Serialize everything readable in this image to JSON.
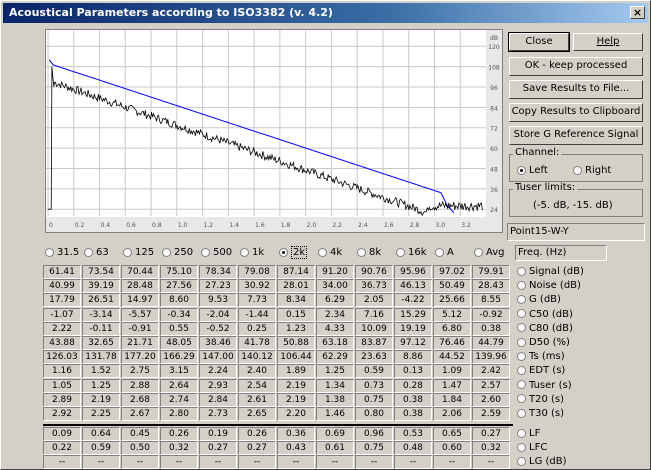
{
  "window": {
    "title": "Acoustical Parameters according to ISO3382 (v. 4.2)",
    "close_glyph": "×"
  },
  "plot": {
    "y_ticks": [
      "120",
      "108",
      "96",
      "84",
      "72",
      "60",
      "48",
      "36",
      "24"
    ],
    "x_ticks": [
      "0",
      "0.2",
      "0.4",
      "0.6",
      "0.8",
      "1.0",
      "1.2",
      "1.4",
      "1.6",
      "1.8",
      "2.0",
      "2.2",
      "2.4",
      "2.6",
      "2.8",
      "3.0",
      "3.2"
    ],
    "extra_top_label": "dB"
  },
  "buttons": {
    "close": "Close",
    "help": "Help",
    "ok": "OK - keep processed",
    "save": "Save Results to File...",
    "copy": "Copy Results to Clipboard",
    "store": "Store G Reference Signal"
  },
  "channel": {
    "label": "Channel:",
    "left": "Left",
    "right": "Right",
    "selected": "Left"
  },
  "tuser": {
    "label": "Tuser limits:",
    "value": "(-5. dB, -15. dB)"
  },
  "point_name": "Point15-W-Y",
  "bands": [
    "31.5",
    "63",
    "125",
    "250",
    "500",
    "1k",
    "2k",
    "4k",
    "8k",
    "16k",
    "A",
    "Avg"
  ],
  "selected_band": "2k",
  "freq_header": "Freq. (Hz)",
  "params": [
    {
      "label": "Signal (dB)",
      "values": [
        "61.41",
        "73.54",
        "70.44",
        "75.10",
        "78.34",
        "79.08",
        "87.14",
        "91.20",
        "90.76",
        "95.96",
        "97.02",
        "79.91"
      ]
    },
    {
      "label": "Noise (dB)",
      "values": [
        "40.99",
        "39.19",
        "28.48",
        "27.56",
        "27.23",
        "30.92",
        "28.01",
        "34.00",
        "36.73",
        "46.13",
        "50.49",
        "28.43"
      ]
    },
    {
      "label": "G (dB)",
      "values": [
        "17.79",
        "26.51",
        "14.97",
        "8.60",
        "9.53",
        "7.73",
        "8.34",
        "6.29",
        "2.05",
        "-4.22",
        "25.66",
        "8.55"
      ]
    },
    {
      "label": "C50 (dB)",
      "values": [
        "-1.07",
        "-3.14",
        "-5.57",
        "-0.34",
        "-2.04",
        "-1.44",
        "0.15",
        "2.34",
        "7.16",
        "15.29",
        "5.12",
        "-0.92"
      ]
    },
    {
      "label": "C80 (dB)",
      "values": [
        "2.22",
        "-0.11",
        "-0.91",
        "0.55",
        "-0.52",
        "0.25",
        "1.23",
        "4.33",
        "10.09",
        "19.19",
        "6.80",
        "0.38"
      ]
    },
    {
      "label": "D50 (%)",
      "values": [
        "43.88",
        "32.65",
        "21.71",
        "48.05",
        "38.46",
        "41.78",
        "50.88",
        "63.18",
        "83.87",
        "97.12",
        "76.46",
        "44.79"
      ]
    },
    {
      "label": "Ts (ms)",
      "values": [
        "126.03",
        "131.78",
        "177.20",
        "166.29",
        "147.00",
        "140.12",
        "106.44",
        "62.29",
        "23.63",
        "8.86",
        "44.52",
        "139.96"
      ]
    },
    {
      "label": "EDT (s)",
      "values": [
        "1.16",
        "1.52",
        "2.75",
        "3.15",
        "2.24",
        "2.40",
        "1.89",
        "1.25",
        "0.59",
        "0.13",
        "1.09",
        "2.42"
      ]
    },
    {
      "label": "Tuser (s)",
      "values": [
        "1.05",
        "1.25",
        "2.88",
        "2.64",
        "2.93",
        "2.54",
        "2.19",
        "1.34",
        "0.73",
        "0.28",
        "1.47",
        "2.57"
      ]
    },
    {
      "label": "T20 (s)",
      "values": [
        "2.89",
        "2.19",
        "2.68",
        "2.74",
        "2.84",
        "2.61",
        "2.19",
        "1.38",
        "0.75",
        "0.38",
        "1.84",
        "2.60"
      ]
    },
    {
      "label": "T30 (s)",
      "values": [
        "2.92",
        "2.25",
        "2.67",
        "2.80",
        "2.73",
        "2.65",
        "2.20",
        "1.46",
        "0.80",
        "0.38",
        "2.06",
        "2.59"
      ]
    }
  ],
  "params2": [
    {
      "label": "LF",
      "values": [
        "0.09",
        "0.64",
        "0.45",
        "0.26",
        "0.19",
        "0.26",
        "0.36",
        "0.69",
        "0.96",
        "0.53",
        "0.65",
        "0.27"
      ]
    },
    {
      "label": "LFC",
      "values": [
        "0.22",
        "0.59",
        "0.50",
        "0.32",
        "0.27",
        "0.27",
        "0.43",
        "0.61",
        "0.75",
        "0.48",
        "0.60",
        "0.32"
      ]
    },
    {
      "label": "LG (dB)",
      "values": [
        "--",
        "--",
        "--",
        "--",
        "--",
        "--",
        "--",
        "--",
        "--",
        "--",
        "--",
        "--"
      ]
    }
  ],
  "colors": {
    "title_start": "#0a246a",
    "title_end": "#a6caf0",
    "curve": "#0000ff",
    "trace": "#000000"
  }
}
